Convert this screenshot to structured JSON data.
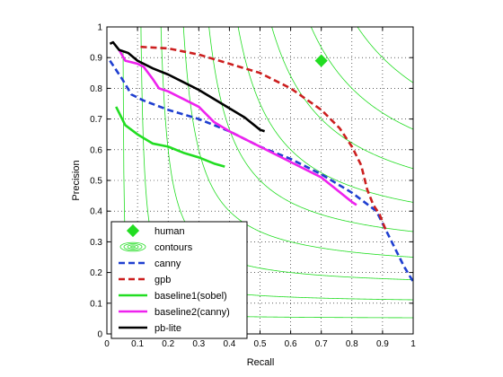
{
  "chart_data": {
    "type": "line",
    "xlabel": "Recall",
    "ylabel": "Precision",
    "xlim": [
      0,
      1
    ],
    "ylim": [
      0,
      1
    ],
    "x_ticks": [
      "0",
      "0.1",
      "0.2",
      "0.3",
      "0.4",
      "0.5",
      "0.6",
      "0.7",
      "0.8",
      "0.9",
      "1"
    ],
    "y_ticks": [
      "0",
      "0.1",
      "0.2",
      "0.3",
      "0.4",
      "0.5",
      "0.6",
      "0.7",
      "0.8",
      "0.9",
      "1"
    ],
    "grid": true,
    "legend_position": "bottom-left",
    "contour_levels": [
      0.1,
      0.2,
      0.3,
      0.4,
      0.5,
      0.6,
      0.7,
      0.8,
      0.9
    ],
    "series": [
      {
        "name": "human",
        "kind": "marker",
        "color": "#22dd22",
        "points": [
          [
            0.7,
            0.89
          ]
        ]
      },
      {
        "name": "contours",
        "kind": "contour",
        "color": "#22dd22"
      },
      {
        "name": "canny",
        "kind": "line",
        "style": "dashed",
        "color": "#1f3fd0",
        "points": [
          [
            0.01,
            0.89
          ],
          [
            0.05,
            0.83
          ],
          [
            0.08,
            0.78
          ],
          [
            0.12,
            0.76
          ],
          [
            0.2,
            0.73
          ],
          [
            0.3,
            0.7
          ],
          [
            0.4,
            0.66
          ],
          [
            0.5,
            0.61
          ],
          [
            0.6,
            0.57
          ],
          [
            0.7,
            0.52
          ],
          [
            0.8,
            0.46
          ],
          [
            0.88,
            0.4
          ],
          [
            0.93,
            0.3
          ],
          [
            0.97,
            0.22
          ],
          [
            1.0,
            0.17
          ]
        ]
      },
      {
        "name": "gpb",
        "kind": "line",
        "style": "dashed",
        "color": "#cc1f1f",
        "points": [
          [
            0.11,
            0.935
          ],
          [
            0.2,
            0.93
          ],
          [
            0.3,
            0.91
          ],
          [
            0.4,
            0.88
          ],
          [
            0.5,
            0.85
          ],
          [
            0.6,
            0.8
          ],
          [
            0.7,
            0.73
          ],
          [
            0.76,
            0.67
          ],
          [
            0.8,
            0.61
          ],
          [
            0.83,
            0.55
          ],
          [
            0.85,
            0.47
          ],
          [
            0.87,
            0.42
          ],
          [
            0.89,
            0.39
          ],
          [
            0.91,
            0.34
          ]
        ]
      },
      {
        "name": "baseline1(sobel)",
        "kind": "line",
        "style": "solid",
        "color": "#22dd22",
        "points": [
          [
            0.03,
            0.74
          ],
          [
            0.06,
            0.68
          ],
          [
            0.1,
            0.65
          ],
          [
            0.15,
            0.62
          ],
          [
            0.2,
            0.61
          ],
          [
            0.25,
            0.59
          ],
          [
            0.3,
            0.575
          ],
          [
            0.35,
            0.555
          ],
          [
            0.385,
            0.545
          ]
        ]
      },
      {
        "name": "baseline2(canny)",
        "kind": "line",
        "style": "solid",
        "color": "#ee22ee",
        "points": [
          [
            0.04,
            0.925
          ],
          [
            0.06,
            0.89
          ],
          [
            0.1,
            0.88
          ],
          [
            0.12,
            0.87
          ],
          [
            0.15,
            0.83
          ],
          [
            0.17,
            0.8
          ],
          [
            0.2,
            0.79
          ],
          [
            0.3,
            0.74
          ],
          [
            0.35,
            0.69
          ],
          [
            0.4,
            0.66
          ],
          [
            0.5,
            0.61
          ],
          [
            0.6,
            0.56
          ],
          [
            0.7,
            0.51
          ],
          [
            0.8,
            0.43
          ],
          [
            0.815,
            0.42
          ]
        ]
      },
      {
        "name": "pb-lite",
        "kind": "line",
        "style": "solid",
        "color": "#000000",
        "points": [
          [
            0.01,
            0.945
          ],
          [
            0.02,
            0.95
          ],
          [
            0.04,
            0.925
          ],
          [
            0.07,
            0.915
          ],
          [
            0.1,
            0.89
          ],
          [
            0.15,
            0.865
          ],
          [
            0.2,
            0.845
          ],
          [
            0.25,
            0.82
          ],
          [
            0.3,
            0.795
          ],
          [
            0.35,
            0.765
          ],
          [
            0.4,
            0.735
          ],
          [
            0.45,
            0.705
          ],
          [
            0.5,
            0.665
          ],
          [
            0.515,
            0.66
          ]
        ]
      }
    ]
  }
}
